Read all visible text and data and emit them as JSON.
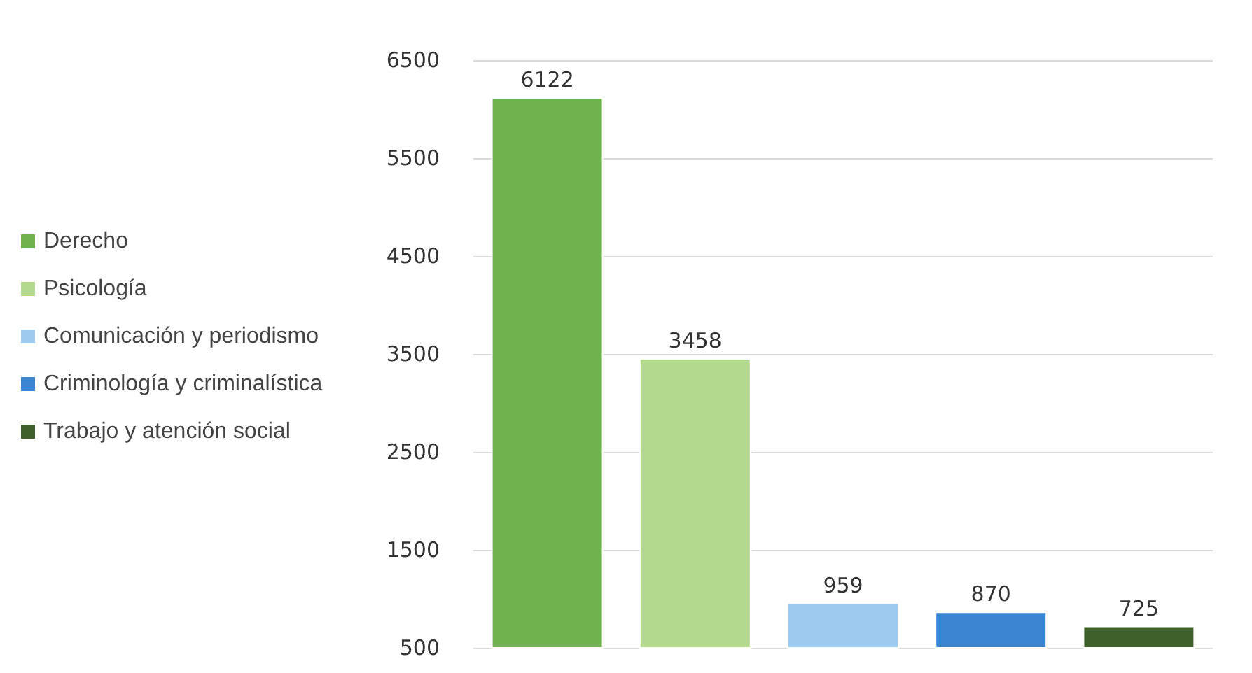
{
  "chart_data": {
    "type": "bar",
    "categories": [
      null,
      null,
      null,
      null,
      null
    ],
    "series": [
      {
        "name": "Derecho",
        "color": "#6fb24e",
        "values": [
          6122,
          null,
          null,
          null,
          null
        ]
      },
      {
        "name": "Psicología",
        "color": "#b3da8c",
        "values": [
          null,
          3458,
          null,
          null,
          null
        ]
      },
      {
        "name": "Comunicación y periodismo",
        "color": "#9dcbf0",
        "values": [
          null,
          null,
          959,
          null,
          null
        ]
      },
      {
        "name": "Criminología y criminalística",
        "color": "#3b86d3",
        "values": [
          null,
          null,
          null,
          870,
          null
        ]
      },
      {
        "name": "Trabajo y atención social",
        "color": "#3f5f2b",
        "values": [
          null,
          null,
          null,
          null,
          725
        ]
      }
    ],
    "ylim": [
      500,
      6500
    ],
    "yticks": [
      500,
      1500,
      2500,
      3500,
      4500,
      5500,
      6500
    ],
    "grid": "y",
    "legend": "left",
    "data_labels": true
  }
}
